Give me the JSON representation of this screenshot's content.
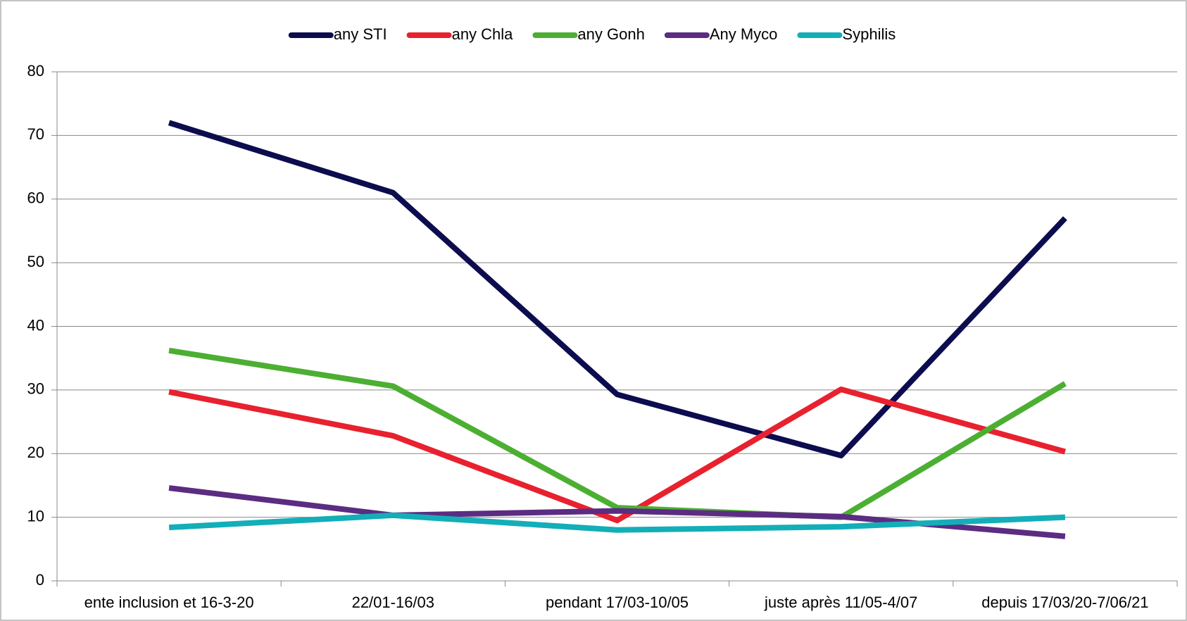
{
  "chart_data": {
    "type": "line",
    "categories": [
      "ente inclusion et 16-3-20",
      "22/01-16/03",
      "pendant 17/03-10/05",
      "juste après 11/05-4/07",
      "depuis 17/03/20-7/06/21"
    ],
    "series": [
      {
        "name": "any STI",
        "color": "#0c0c4f",
        "values": [
          72,
          61,
          29.3,
          19.7,
          57
        ]
      },
      {
        "name": "any Chla",
        "color": "#e8212f",
        "values": [
          29.7,
          22.8,
          9.5,
          30.1,
          20.3
        ]
      },
      {
        "name": "any Gonh",
        "color": "#4caf32",
        "values": [
          36.2,
          30.6,
          11.5,
          10,
          31
        ]
      },
      {
        "name": "Any Myco",
        "color": "#5b2c82",
        "values": [
          14.6,
          10.3,
          11,
          10.1,
          7
        ]
      },
      {
        "name": "Syphilis",
        "color": "#13aeb8",
        "values": [
          8.4,
          10.3,
          8,
          8.5,
          10
        ]
      }
    ],
    "ylim": [
      0,
      80
    ],
    "yticks": [
      0,
      10,
      20,
      30,
      40,
      50,
      60,
      70,
      80
    ],
    "grid": true,
    "legend": "top"
  }
}
